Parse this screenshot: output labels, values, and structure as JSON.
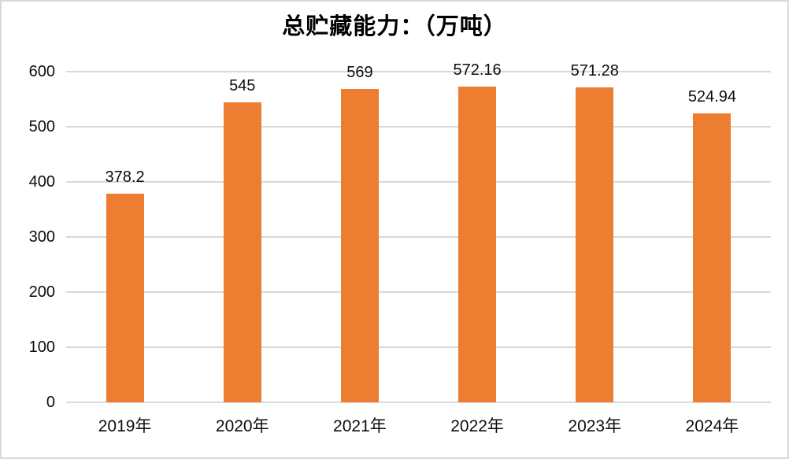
{
  "chart_data": {
    "type": "bar",
    "title": "总贮藏能力：（万吨）",
    "categories": [
      "2019年",
      "2020年",
      "2021年",
      "2022年",
      "2023年",
      "2024年"
    ],
    "values": [
      378.2,
      545,
      569,
      572.16,
      571.28,
      524.94
    ],
    "data_labels": [
      "378.2",
      "545",
      "569",
      "572.16",
      "571.28",
      "524.94"
    ],
    "xlabel": "",
    "ylabel": "",
    "ylim": [
      0,
      600
    ],
    "ytick_interval": 100,
    "ytick_labels": [
      "0",
      "100",
      "200",
      "300",
      "400",
      "500",
      "600"
    ],
    "grid": true,
    "legend": "none",
    "colors": {
      "bar": "#ED7D31",
      "gridline": "#D9D9D9",
      "axis_line": "#D9D9D9",
      "text": "#0D0D0D",
      "title_text": "#000000",
      "background": "#FFFFFF",
      "frame_border": "#D9D9D9"
    }
  }
}
